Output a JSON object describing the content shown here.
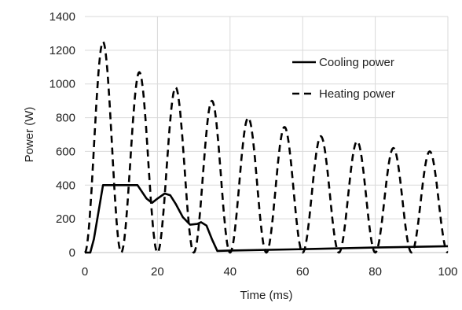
{
  "chart_data": {
    "type": "line",
    "title": "",
    "xlabel": "Time (ms)",
    "ylabel": "Power (W)",
    "xlim": [
      0,
      100
    ],
    "ylim": [
      0,
      1400
    ],
    "xticks": [
      0,
      20,
      40,
      60,
      80,
      100
    ],
    "yticks": [
      0,
      200,
      400,
      600,
      800,
      1000,
      1200,
      1400
    ],
    "grid": true,
    "legend_position": "top-right",
    "series": [
      {
        "name": "Cooling power",
        "style": "solid",
        "color": "#000000",
        "points": [
          [
            0,
            0
          ],
          [
            1.5,
            0
          ],
          [
            2.5,
            80
          ],
          [
            5,
            400
          ],
          [
            10,
            400
          ],
          [
            14.5,
            400
          ],
          [
            17,
            320
          ],
          [
            18.5,
            295
          ],
          [
            20,
            320
          ],
          [
            22,
            350
          ],
          [
            23.5,
            340
          ],
          [
            25,
            290
          ],
          [
            27,
            210
          ],
          [
            29,
            165
          ],
          [
            31,
            170
          ],
          [
            32,
            180
          ],
          [
            33.5,
            160
          ],
          [
            35,
            80
          ],
          [
            36.5,
            10
          ],
          [
            40,
            12
          ],
          [
            60,
            20
          ],
          [
            80,
            30
          ],
          [
            100,
            38
          ]
        ]
      },
      {
        "name": "Heating power",
        "style": "dashed",
        "color": "#000000",
        "peaks": [
          [
            5,
            1250
          ],
          [
            15,
            1070
          ],
          [
            25,
            980
          ],
          [
            35,
            900
          ],
          [
            45,
            800
          ],
          [
            55,
            745
          ],
          [
            65,
            690
          ],
          [
            75,
            660
          ],
          [
            85,
            620
          ],
          [
            95,
            600
          ]
        ],
        "troughs": [
          0,
          10,
          20,
          30,
          40,
          50,
          60,
          70,
          80,
          90,
          100
        ]
      }
    ]
  }
}
